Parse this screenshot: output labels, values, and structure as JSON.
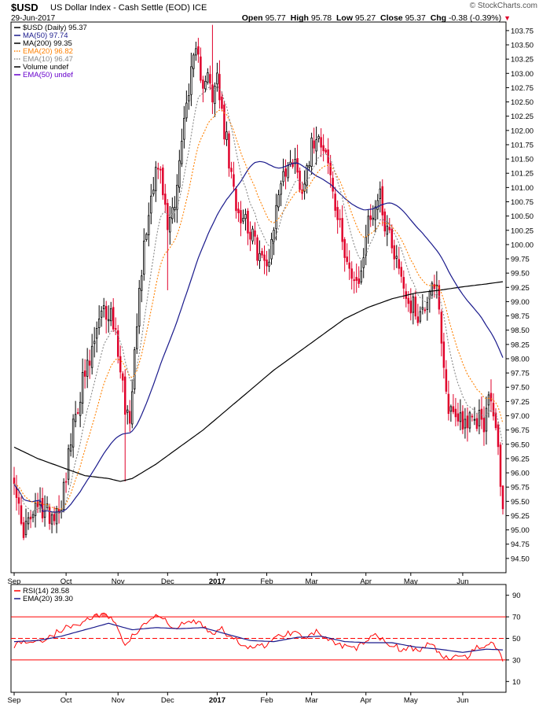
{
  "header": {
    "symbol": "$USD",
    "name": "US Dollar Index - Cash Settle (EOD)",
    "exchange": "ICE",
    "date": "29-Jun-2017",
    "site": "© StockCharts.com",
    "open_label": "Open",
    "open": "95.77",
    "high_label": "High",
    "high": "95.78",
    "low_label": "Low",
    "low": "95.27",
    "close_label": "Close",
    "close": "95.37",
    "chg_label": "Chg",
    "chg": "-0.38 (-0.39%)"
  },
  "colors": {
    "up_candle": "#000000",
    "down_candle": "#e0002a",
    "ma50": "#1a1a8c",
    "ma200": "#000000",
    "ema20": "#ff8000",
    "ema10": "#888888",
    "rsi": "#ff0000",
    "rsi_ema": "#1a1a8c",
    "rsi_fill": "#ff0000"
  },
  "chart_data": [
    {
      "type": "candlestick",
      "title": "$USD (Daily) 95.37",
      "legend": [
        {
          "name": "$USD (Daily)",
          "value": "95.37",
          "color": "#000000",
          "icon": "candle-icon"
        },
        {
          "name": "MA(50)",
          "value": "97.74",
          "color": "#1a1a8c",
          "icon": "line-icon"
        },
        {
          "name": "MA(200)",
          "value": "99.35",
          "color": "#000000",
          "icon": "line-icon"
        },
        {
          "name": "EMA(20)",
          "value": "96.82",
          "color": "#ff8000",
          "icon": "dotted-line-icon"
        },
        {
          "name": "EMA(10)",
          "value": "96.47",
          "color": "#888888",
          "icon": "dotted-line-icon"
        },
        {
          "name": "Volume",
          "value": "undef",
          "color": "#000000",
          "icon": "bars-icon"
        },
        {
          "name": "EMA(50)",
          "value": "undef",
          "color": "#6600cc",
          "icon": "line-icon"
        }
      ],
      "y_range": [
        94.25,
        103.9
      ],
      "y_ticks": [
        "94.50",
        "94.75",
        "95.00",
        "95.25",
        "95.50",
        "95.75",
        "96.00",
        "96.25",
        "96.50",
        "96.75",
        "97.00",
        "97.25",
        "97.50",
        "97.75",
        "98.00",
        "98.25",
        "98.50",
        "98.75",
        "99.00",
        "99.25",
        "99.50",
        "99.75",
        "100.00",
        "100.25",
        "100.50",
        "100.75",
        "101.00",
        "101.25",
        "101.50",
        "101.75",
        "102.00",
        "102.25",
        "102.50",
        "102.75",
        "103.00",
        "103.25",
        "103.50",
        "103.75"
      ],
      "x_labels": [
        {
          "label": "Sep",
          "day": 0
        },
        {
          "label": "Oct",
          "day": 22
        },
        {
          "label": "Nov",
          "day": 44
        },
        {
          "label": "Dec",
          "day": 65
        },
        {
          "label": "2017",
          "day": 86,
          "bold": true
        },
        {
          "label": "Feb",
          "day": 107
        },
        {
          "label": "Mar",
          "day": 126
        },
        {
          "label": "Apr",
          "day": 149
        },
        {
          "label": "May",
          "day": 168
        },
        {
          "label": "Jun",
          "day": 190
        }
      ],
      "day_count": 208,
      "close_anchors": [
        [
          0,
          96.0
        ],
        [
          3,
          95.0
        ],
        [
          6,
          95.1
        ],
        [
          10,
          95.4
        ],
        [
          14,
          95.3
        ],
        [
          17,
          95.3
        ],
        [
          20,
          95.5
        ],
        [
          23,
          96.3
        ],
        [
          26,
          97.0
        ],
        [
          29,
          97.6
        ],
        [
          32,
          97.9
        ],
        [
          35,
          98.5
        ],
        [
          38,
          98.8
        ],
        [
          41,
          98.8
        ],
        [
          44,
          98.2
        ],
        [
          47,
          97.2
        ],
        [
          49,
          96.9
        ],
        [
          51,
          98.3
        ],
        [
          54,
          99.6
        ],
        [
          57,
          100.6
        ],
        [
          60,
          101.4
        ],
        [
          62,
          101.2
        ],
        [
          65,
          100.3
        ],
        [
          68,
          100.8
        ],
        [
          71,
          101.8
        ],
        [
          74,
          102.8
        ],
        [
          77,
          103.3
        ],
        [
          80,
          102.9
        ],
        [
          82,
          103.1
        ],
        [
          84,
          102.4
        ],
        [
          86,
          103.0
        ],
        [
          88,
          102.2
        ],
        [
          90,
          101.8
        ],
        [
          92,
          101.1
        ],
        [
          95,
          100.6
        ],
        [
          98,
          100.5
        ],
        [
          101,
          100.1
        ],
        [
          104,
          99.8
        ],
        [
          107,
          99.6
        ],
        [
          109,
          100.1
        ],
        [
          111,
          100.6
        ],
        [
          113,
          101.2
        ],
        [
          116,
          101.3
        ],
        [
          119,
          101.6
        ],
        [
          121,
          100.9
        ],
        [
          124,
          101.4
        ],
        [
          126,
          101.7
        ],
        [
          128,
          102.0
        ],
        [
          131,
          101.8
        ],
        [
          134,
          101.2
        ],
        [
          136,
          100.6
        ],
        [
          139,
          100.1
        ],
        [
          141,
          99.8
        ],
        [
          143,
          99.4
        ],
        [
          145,
          99.2
        ],
        [
          147,
          99.5
        ],
        [
          149,
          100.2
        ],
        [
          151,
          100.5
        ],
        [
          153,
          100.7
        ],
        [
          155,
          100.9
        ],
        [
          157,
          100.4
        ],
        [
          159,
          100.2
        ],
        [
          161,
          99.9
        ],
        [
          163,
          99.6
        ],
        [
          165,
          99.3
        ],
        [
          167,
          99.0
        ],
        [
          169,
          98.9
        ],
        [
          171,
          98.8
        ],
        [
          173,
          98.8
        ],
        [
          175,
          99.1
        ],
        [
          177,
          99.4
        ],
        [
          179,
          99.2
        ],
        [
          181,
          98.2
        ],
        [
          183,
          97.3
        ],
        [
          185,
          97.1
        ],
        [
          187,
          97.0
        ],
        [
          189,
          97.0
        ],
        [
          191,
          96.9
        ],
        [
          193,
          96.9
        ],
        [
          195,
          96.8
        ],
        [
          197,
          97.0
        ],
        [
          199,
          96.9
        ],
        [
          201,
          97.2
        ],
        [
          203,
          97.1
        ],
        [
          204,
          96.8
        ],
        [
          205,
          96.3
        ],
        [
          206,
          95.9
        ],
        [
          207,
          95.37
        ]
      ],
      "ma200_anchors": [
        [
          0,
          96.45
        ],
        [
          10,
          96.25
        ],
        [
          20,
          96.1
        ],
        [
          30,
          95.95
        ],
        [
          40,
          95.9
        ],
        [
          45,
          95.85
        ],
        [
          50,
          95.9
        ],
        [
          60,
          96.15
        ],
        [
          70,
          96.45
        ],
        [
          80,
          96.75
        ],
        [
          90,
          97.1
        ],
        [
          100,
          97.45
        ],
        [
          110,
          97.8
        ],
        [
          120,
          98.1
        ],
        [
          130,
          98.4
        ],
        [
          140,
          98.7
        ],
        [
          150,
          98.9
        ],
        [
          160,
          99.05
        ],
        [
          170,
          99.15
        ],
        [
          180,
          99.2
        ],
        [
          190,
          99.26
        ],
        [
          200,
          99.31
        ],
        [
          207,
          99.35
        ]
      ]
    },
    {
      "type": "line",
      "title": "RSI(14) 28.58",
      "legend": [
        {
          "name": "RSI(14)",
          "value": "28.58",
          "color": "#ff0000",
          "icon": "line-icon"
        },
        {
          "name": "EMA(20)",
          "value": "39.30",
          "color": "#1a1a8c",
          "icon": "line-icon"
        }
      ],
      "y_range": [
        0,
        100
      ],
      "y_ticks": [
        "10",
        "30",
        "50",
        "70",
        "90"
      ],
      "reference_lines": [
        30,
        50,
        70
      ],
      "rsi_anchors": [
        [
          0,
          44
        ],
        [
          5,
          48
        ],
        [
          10,
          46
        ],
        [
          15,
          52
        ],
        [
          20,
          58
        ],
        [
          25,
          62
        ],
        [
          30,
          66
        ],
        [
          35,
          72
        ],
        [
          40,
          70
        ],
        [
          44,
          60
        ],
        [
          47,
          44
        ],
        [
          50,
          52
        ],
        [
          55,
          62
        ],
        [
          60,
          72
        ],
        [
          64,
          66
        ],
        [
          68,
          58
        ],
        [
          72,
          64
        ],
        [
          76,
          66
        ],
        [
          80,
          62
        ],
        [
          84,
          55
        ],
        [
          88,
          58
        ],
        [
          92,
          50
        ],
        [
          96,
          46
        ],
        [
          100,
          42
        ],
        [
          104,
          42
        ],
        [
          108,
          46
        ],
        [
          112,
          52
        ],
        [
          116,
          55
        ],
        [
          120,
          56
        ],
        [
          124,
          52
        ],
        [
          128,
          56
        ],
        [
          132,
          50
        ],
        [
          136,
          44
        ],
        [
          140,
          42
        ],
        [
          144,
          40
        ],
        [
          148,
          46
        ],
        [
          152,
          52
        ],
        [
          156,
          50
        ],
        [
          160,
          44
        ],
        [
          164,
          40
        ],
        [
          168,
          42
        ],
        [
          172,
          38
        ],
        [
          176,
          46
        ],
        [
          180,
          36
        ],
        [
          184,
          32
        ],
        [
          188,
          35
        ],
        [
          192,
          34
        ],
        [
          196,
          42
        ],
        [
          200,
          44
        ],
        [
          203,
          44
        ],
        [
          205,
          40
        ],
        [
          207,
          28.58
        ]
      ],
      "rsi_ema_anchors": [
        [
          0,
          47
        ],
        [
          10,
          48
        ],
        [
          20,
          52
        ],
        [
          30,
          58
        ],
        [
          40,
          64
        ],
        [
          50,
          58
        ],
        [
          60,
          60
        ],
        [
          70,
          59
        ],
        [
          80,
          60
        ],
        [
          90,
          54
        ],
        [
          100,
          48
        ],
        [
          110,
          47
        ],
        [
          120,
          51
        ],
        [
          130,
          52
        ],
        [
          140,
          47
        ],
        [
          150,
          46
        ],
        [
          160,
          46
        ],
        [
          170,
          42
        ],
        [
          180,
          40
        ],
        [
          190,
          37
        ],
        [
          200,
          40
        ],
        [
          207,
          39.3
        ]
      ]
    }
  ]
}
